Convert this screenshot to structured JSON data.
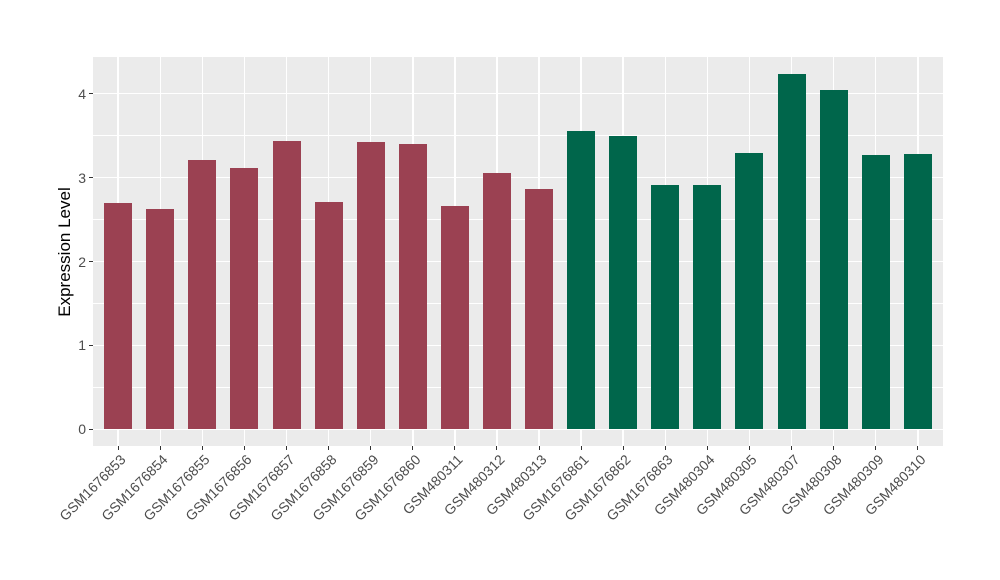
{
  "chart_data": {
    "type": "bar",
    "title": "",
    "xlabel": "",
    "ylabel": "Expression Level",
    "yticks": [
      0,
      1,
      2,
      3,
      4
    ],
    "ylim": [
      0,
      4.44
    ],
    "grid": "major-and-minor-white-on-gray",
    "legend": "none",
    "x_label_rotation_deg": 45,
    "categories": [
      "GSM1676853",
      "GSM1676854",
      "GSM1676855",
      "GSM1676856",
      "GSM1676857",
      "GSM1676858",
      "GSM1676859",
      "GSM1676860",
      "GSM480311",
      "GSM480312",
      "GSM480313",
      "GSM1676861",
      "GSM1676862",
      "GSM1676863",
      "GSM480304",
      "GSM480305",
      "GSM480307",
      "GSM480308",
      "GSM480309",
      "GSM480310"
    ],
    "values": [
      2.7,
      2.62,
      3.21,
      3.11,
      3.44,
      2.71,
      3.43,
      3.4,
      2.66,
      3.05,
      2.86,
      3.56,
      3.49,
      2.91,
      2.91,
      3.29,
      4.23,
      4.05,
      3.27,
      3.28
    ],
    "colors": [
      "#9B4152",
      "#9B4152",
      "#9B4152",
      "#9B4152",
      "#9B4152",
      "#9B4152",
      "#9B4152",
      "#9B4152",
      "#9B4152",
      "#9B4152",
      "#9B4152",
      "#00664B",
      "#00664B",
      "#00664B",
      "#00664B",
      "#00664B",
      "#00664B",
      "#00664B",
      "#00664B",
      "#00664B"
    ],
    "panel_bg": "#EBEBEB",
    "grid_color": "#FFFFFF",
    "axis_text_color": "#4D4D4D",
    "axis_title_color": "#000000",
    "tick_mark_color": "#333333",
    "figure_bg": "#FFFFFF"
  }
}
